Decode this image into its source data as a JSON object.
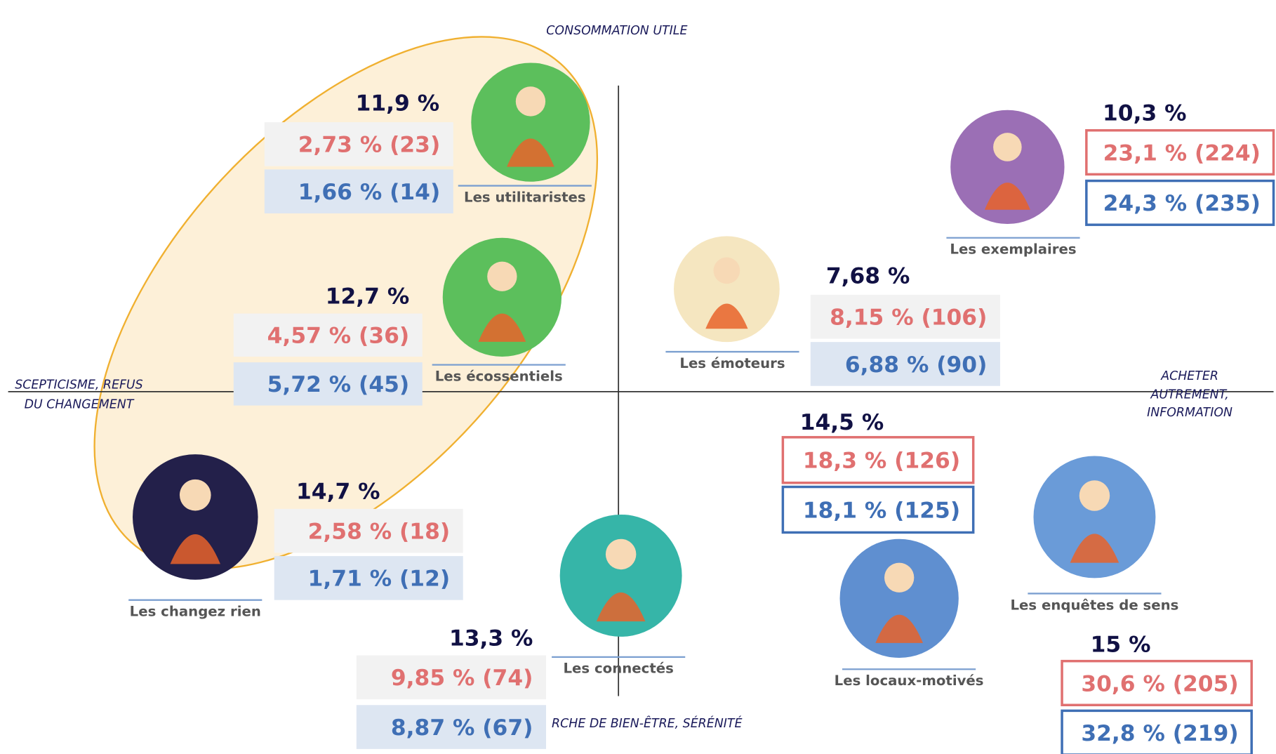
{
  "axes": {
    "top": "CONSOMMATION UTILE",
    "bottom": "RCHE DE BIEN-ÊTRE, SÉRÉNITÉ",
    "left": [
      "SCEPTICISME, REFUS",
      "DU CHANGEMENT"
    ],
    "right": [
      "ACHETER",
      "AUTREMENT,",
      "INFORMATION"
    ]
  },
  "segments": [
    {
      "name": "Les utilitaristes",
      "total": "11,9 %",
      "red": "2,73 % (23)",
      "blue": "1,66 % (14)"
    },
    {
      "name": "Les écossentiels",
      "total": "12,7 %",
      "red": "4,57 % (36)",
      "blue": "5,72 % (45)"
    },
    {
      "name": "Les changez rien",
      "total": "14,7 %",
      "red": "2,58 % (18)",
      "blue": "1,71 % (12)"
    },
    {
      "name": "Les connectés",
      "total": "13,3 %",
      "red": "9,85 % (74)",
      "blue": "8,87 % (67)"
    },
    {
      "name": "Les émoteurs",
      "total": "7,68 %",
      "red": "8,15 % (106)",
      "blue": "6,88 % (90)"
    },
    {
      "name": "Les exemplaires",
      "total": "10,3 %",
      "red": "23,1 % (224)",
      "blue": "24,3 % (235)"
    },
    {
      "name": "Les locaux-motivés",
      "total": "14,5 %",
      "red": "18,3 % (126)",
      "blue": "18,1 % (125)"
    },
    {
      "name": "Les enquêtes de sens",
      "total": "15 %",
      "red": "30,6 % (205)",
      "blue": "32,8 % (219)"
    }
  ]
}
